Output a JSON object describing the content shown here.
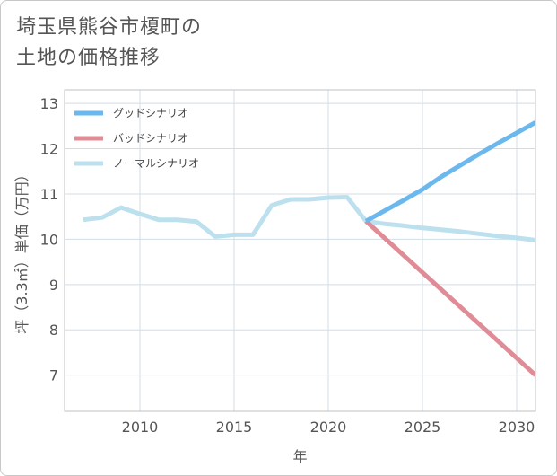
{
  "title_line1": "埼玉県熊谷市榎町の",
  "title_line2": "土地の価格推移",
  "colors": {
    "good": "#6bb8ee",
    "bad": "#e08c96",
    "normal": "#bde0ee",
    "grid": "#d0dde6",
    "axis": "#555555"
  },
  "chart_data": {
    "type": "line",
    "title": "埼玉県熊谷市榎町の土地の価格推移",
    "xlabel": "年",
    "ylabel": "坪（3.3㎡）単価（万円）",
    "xlim": [
      2006,
      2031
    ],
    "ylim": [
      6.2,
      13.3
    ],
    "xticks": [
      2010,
      2015,
      2020,
      2025,
      2030
    ],
    "yticks": [
      7,
      8,
      9,
      10,
      11,
      12,
      13
    ],
    "legend_position": "top-left",
    "series": [
      {
        "name": "グッドシナリオ",
        "color": "#6bb8ee",
        "x": [
          2022,
          2023,
          2024,
          2025,
          2026,
          2027,
          2028,
          2029,
          2030,
          2031
        ],
        "y": [
          10.4,
          10.63,
          10.86,
          11.1,
          11.38,
          11.63,
          11.88,
          12.12,
          12.35,
          12.58
        ]
      },
      {
        "name": "バッドシナリオ",
        "color": "#e08c96",
        "x": [
          2022,
          2031
        ],
        "y": [
          10.4,
          7.0
        ]
      },
      {
        "name": "ノーマルシナリオ",
        "color": "#bde0ee",
        "x": [
          2007,
          2008,
          2009,
          2010,
          2011,
          2012,
          2013,
          2014,
          2015,
          2016,
          2017,
          2018,
          2019,
          2020,
          2021,
          2022,
          2023,
          2024,
          2025,
          2026,
          2027,
          2028,
          2029,
          2030,
          2031
        ],
        "y": [
          10.43,
          10.48,
          10.7,
          10.56,
          10.43,
          10.43,
          10.39,
          10.06,
          10.1,
          10.1,
          10.75,
          10.88,
          10.88,
          10.92,
          10.93,
          10.4,
          10.34,
          10.3,
          10.25,
          10.21,
          10.17,
          10.12,
          10.07,
          10.03,
          9.98
        ]
      }
    ]
  }
}
